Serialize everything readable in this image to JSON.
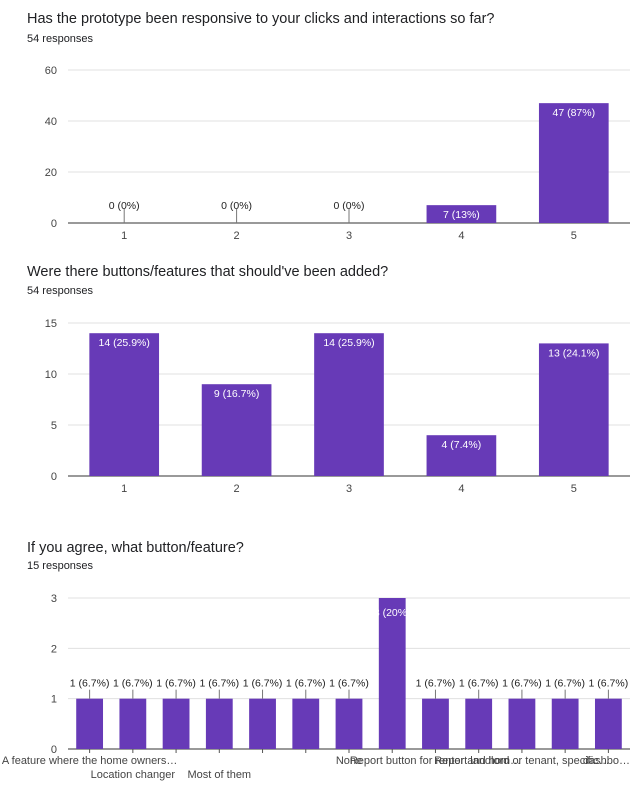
{
  "charts": [
    {
      "title": "Has the prototype been responsive to your clicks and interactions so far?",
      "responses": "54 responses"
    },
    {
      "title": "Were there buttons/features that should've been added?",
      "responses": "54 responses"
    },
    {
      "title": "If you agree, what button/feature?",
      "responses": "15 responses"
    }
  ],
  "bar_color": "#673ab7",
  "chart_data": [
    {
      "type": "bar",
      "title": "Has the prototype been responsive to your clicks and interactions so far?",
      "categories": [
        "1",
        "2",
        "3",
        "4",
        "5"
      ],
      "values": [
        0,
        0,
        0,
        7,
        47
      ],
      "labels": [
        "0 (0%)",
        "0 (0%)",
        "0 (0%)",
        "7 (13%)",
        "47 (87%)"
      ],
      "yticks": [
        0,
        20,
        40,
        60
      ],
      "ylim": [
        0,
        60
      ],
      "grid": true
    },
    {
      "type": "bar",
      "title": "Were there buttons/features that should've been added?",
      "categories": [
        "1",
        "2",
        "3",
        "4",
        "5"
      ],
      "values": [
        14,
        9,
        14,
        4,
        13
      ],
      "labels": [
        "14 (25.9%)",
        "9 (16.7%)",
        "14 (25.9%)",
        "4 (7.4%)",
        "13 (24.1%)"
      ],
      "yticks": [
        0,
        5,
        10,
        15
      ],
      "ylim": [
        0,
        15
      ],
      "grid": true
    },
    {
      "type": "bar",
      "title": "If you agree, what button/feature?",
      "categories": [
        "A feature where the home owners…",
        "Location changer",
        "",
        "Most of them",
        "",
        "",
        "None",
        "",
        "Report button for renter and hom…",
        "",
        "Report landlord or tenant, specific…",
        "",
        "dashbo…"
      ],
      "values": [
        1,
        1,
        1,
        1,
        1,
        1,
        1,
        3,
        1,
        1,
        1,
        1,
        1
      ],
      "labels": [
        "1 (6.7%)",
        "1 (6.7%)",
        "1 (6.7%)",
        "1 (6.7%)",
        "1 (6.7%)",
        "1 (6.7%)",
        "1 (6.7%)",
        "3 (20%)",
        "1 (6.7%)",
        "1 (6.7%)",
        "1 (6.7%)",
        "1 (6.7%)",
        "1 (6.7%)"
      ],
      "yticks": [
        0,
        1,
        2,
        3
      ],
      "ylim": [
        0,
        3
      ],
      "grid": true
    }
  ]
}
